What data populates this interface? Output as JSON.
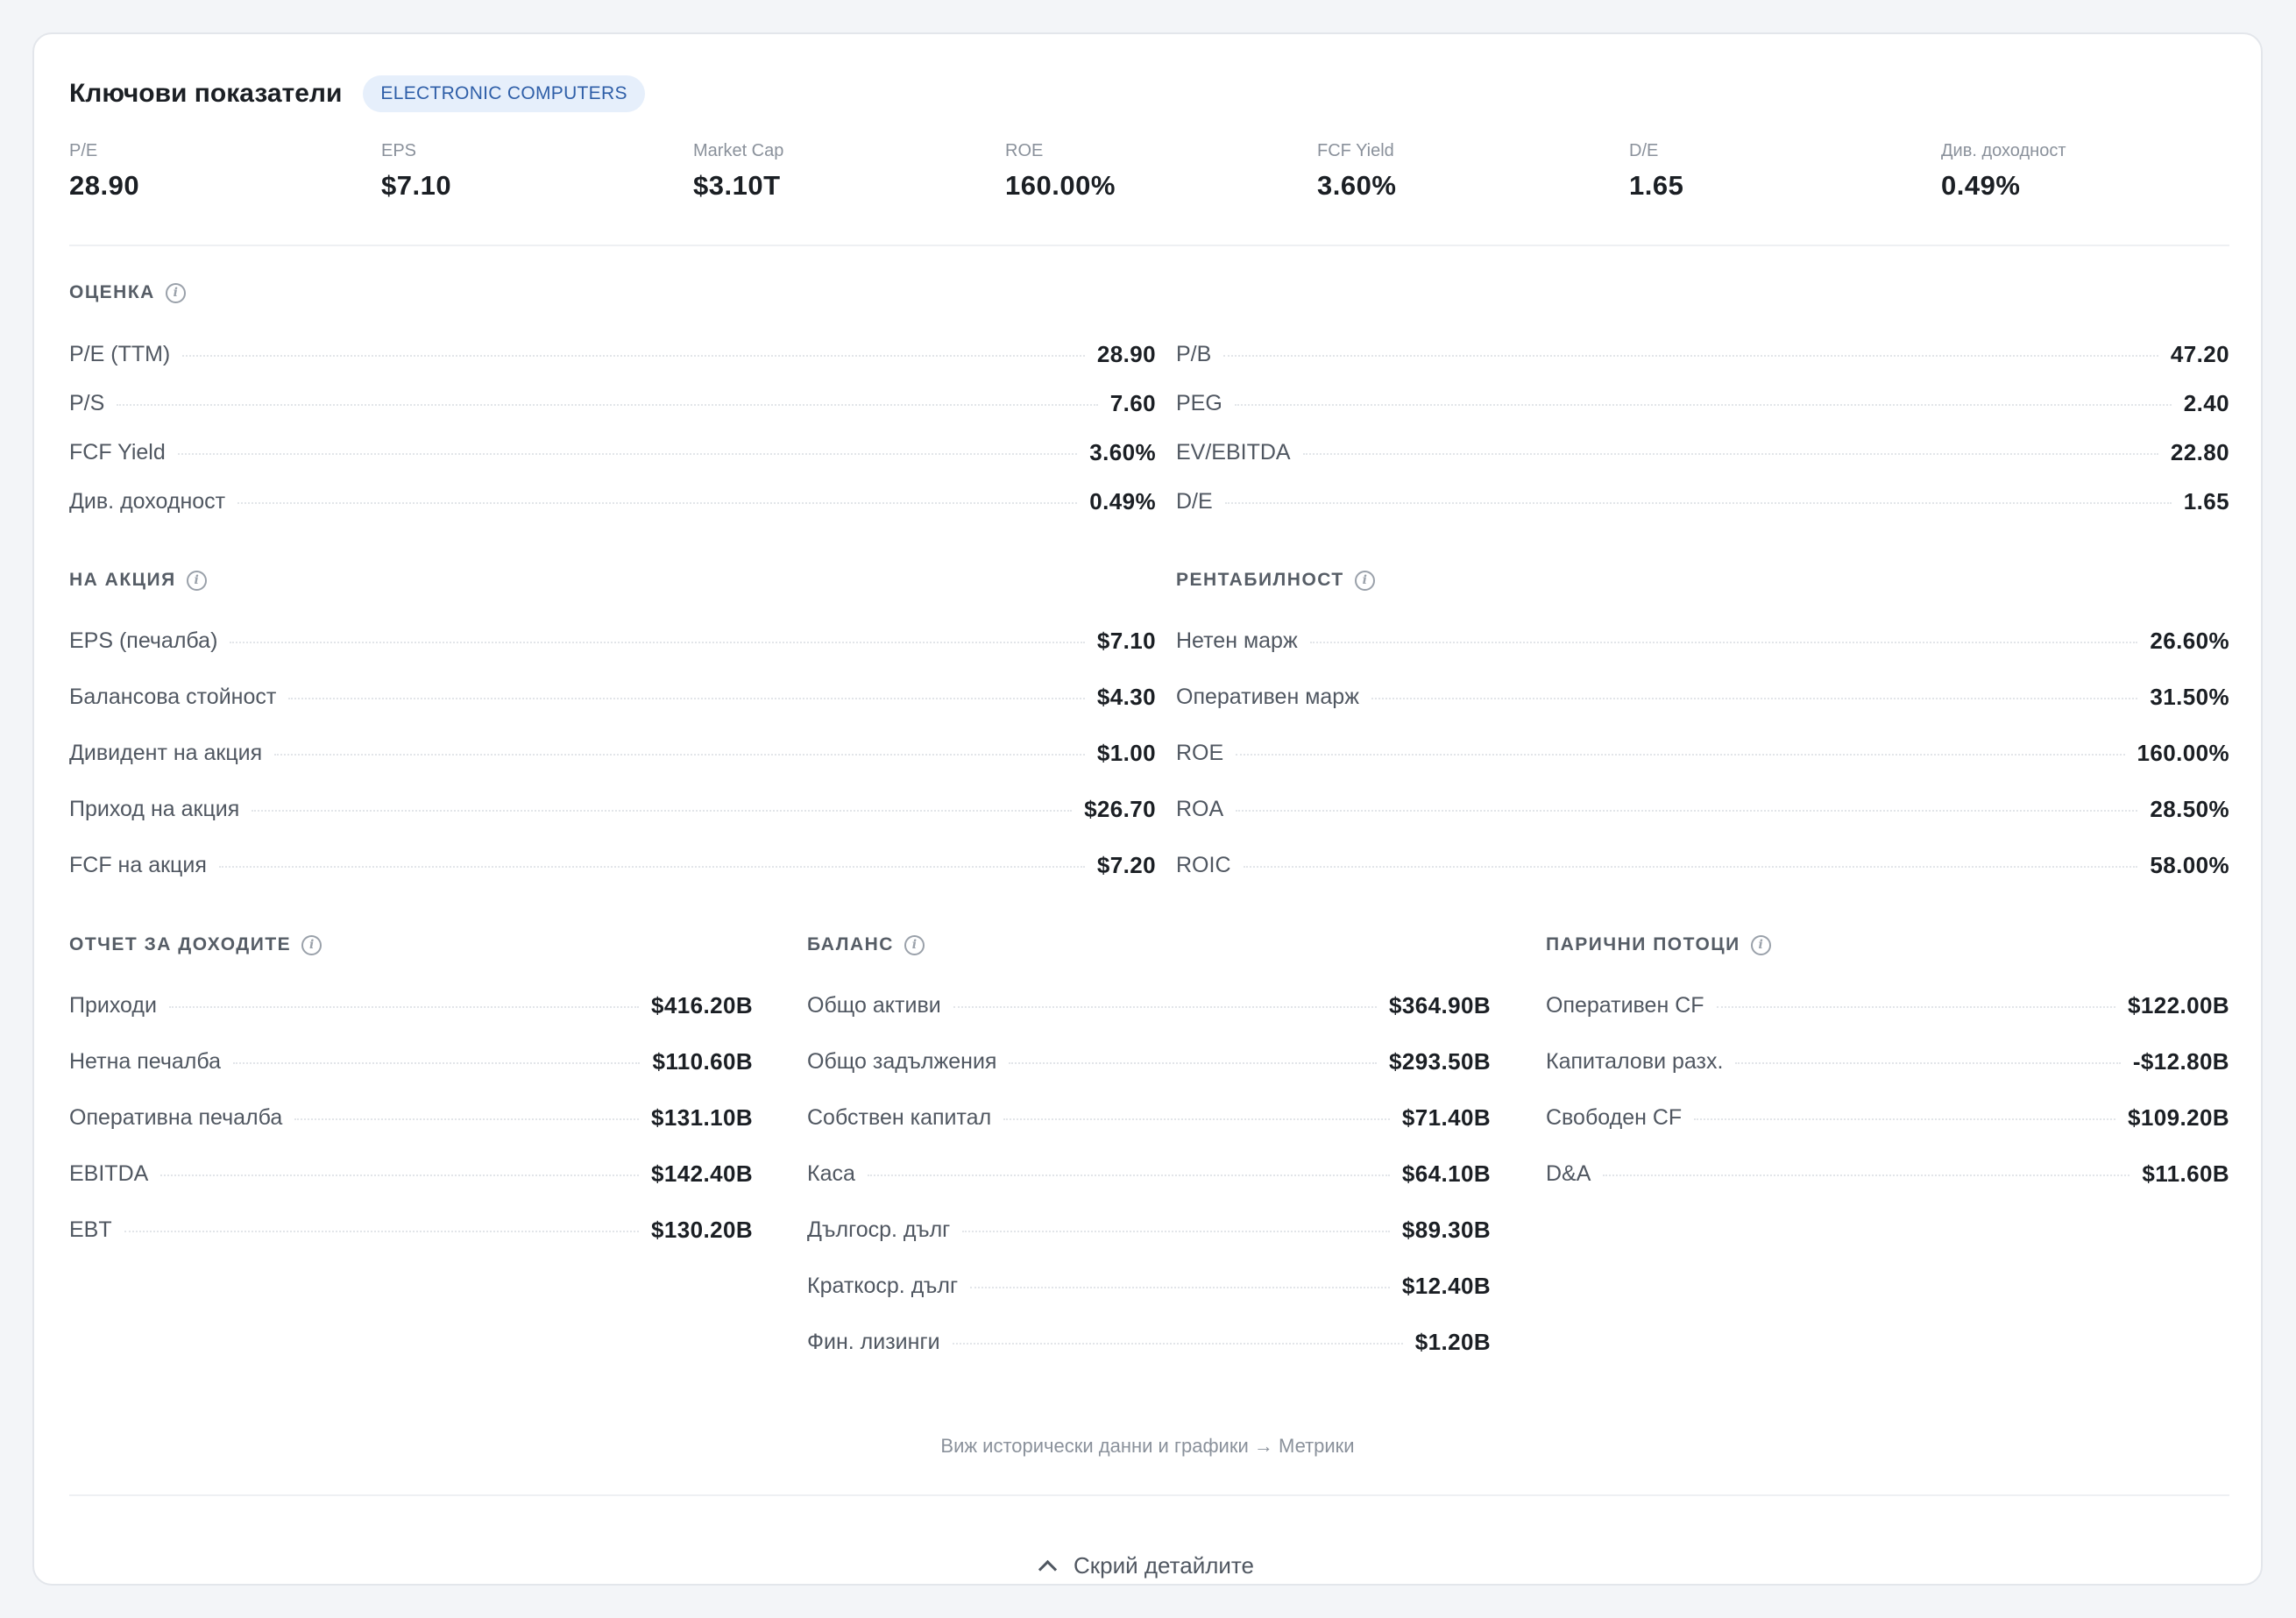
{
  "header": {
    "title": "Ключови показатели",
    "badge": "ELECTRONIC COMPUTERS"
  },
  "top_metrics": [
    {
      "label": "P/E",
      "value": "28.90"
    },
    {
      "label": "EPS",
      "value": "$7.10"
    },
    {
      "label": "Market Cap",
      "value": "$3.10T"
    },
    {
      "label": "ROE",
      "value": "160.00%"
    },
    {
      "label": "FCF Yield",
      "value": "3.60%"
    },
    {
      "label": "D/E",
      "value": "1.65"
    },
    {
      "label": "Див. доходност",
      "value": "0.49%"
    }
  ],
  "valuation": {
    "title": "ОЦЕНКА",
    "left": [
      {
        "label": "P/E (TTM)",
        "value": "28.90"
      },
      {
        "label": "P/S",
        "value": "7.60"
      },
      {
        "label": "FCF Yield",
        "value": "3.60%"
      },
      {
        "label": "Див. доходност",
        "value": "0.49%"
      }
    ],
    "right": [
      {
        "label": "P/B",
        "value": "47.20"
      },
      {
        "label": "PEG",
        "value": "2.40"
      },
      {
        "label": "EV/EBITDA",
        "value": "22.80"
      },
      {
        "label": "D/E",
        "value": "1.65"
      }
    ]
  },
  "per_share": {
    "title": "НА АКЦИЯ",
    "rows": [
      {
        "label": "EPS (печалба)",
        "value": "$7.10"
      },
      {
        "label": "Балансова стойност",
        "value": "$4.30"
      },
      {
        "label": "Дивидент на акция",
        "value": "$1.00"
      },
      {
        "label": "Приход на акция",
        "value": "$26.70"
      },
      {
        "label": "FCF на акция",
        "value": "$7.20"
      }
    ]
  },
  "profitability": {
    "title": "РЕНТАБИЛНОСТ",
    "rows": [
      {
        "label": "Нетен марж",
        "value": "26.60%"
      },
      {
        "label": "Оперативен марж",
        "value": "31.50%"
      },
      {
        "label": "ROE",
        "value": "160.00%"
      },
      {
        "label": "ROA",
        "value": "28.50%"
      },
      {
        "label": "ROIC",
        "value": "58.00%"
      }
    ]
  },
  "income": {
    "title": "ОТЧЕТ ЗА ДОХОДИТЕ",
    "rows": [
      {
        "label": "Приходи",
        "value": "$416.20B"
      },
      {
        "label": "Нетна печалба",
        "value": "$110.60B"
      },
      {
        "label": "Оперативна печалба",
        "value": "$131.10B"
      },
      {
        "label": "EBITDA",
        "value": "$142.40B"
      },
      {
        "label": "EBT",
        "value": "$130.20B"
      }
    ]
  },
  "balance": {
    "title": "БАЛАНС",
    "rows": [
      {
        "label": "Общо активи",
        "value": "$364.90B"
      },
      {
        "label": "Общо задължения",
        "value": "$293.50B"
      },
      {
        "label": "Собствен капитал",
        "value": "$71.40B"
      },
      {
        "label": "Каса",
        "value": "$64.10B"
      },
      {
        "label": "Дългоср. дълг",
        "value": "$89.30B"
      },
      {
        "label": "Краткоср. дълг",
        "value": "$12.40B"
      },
      {
        "label": "Фин. лизинги",
        "value": "$1.20B"
      }
    ]
  },
  "cashflow": {
    "title": "ПАРИЧНИ ПОТОЦИ",
    "rows": [
      {
        "label": "Оперативен CF",
        "value": "$122.00B"
      },
      {
        "label": "Капиталови разх.",
        "value": "-$12.80B"
      },
      {
        "label": "Свободен CF",
        "value": "$109.20B"
      },
      {
        "label": "D&A",
        "value": "$11.60B"
      }
    ]
  },
  "footer": {
    "text": "Виж исторически данни и графики →",
    "link": "Метрики",
    "collapse_label": "Скрий детайлите"
  }
}
